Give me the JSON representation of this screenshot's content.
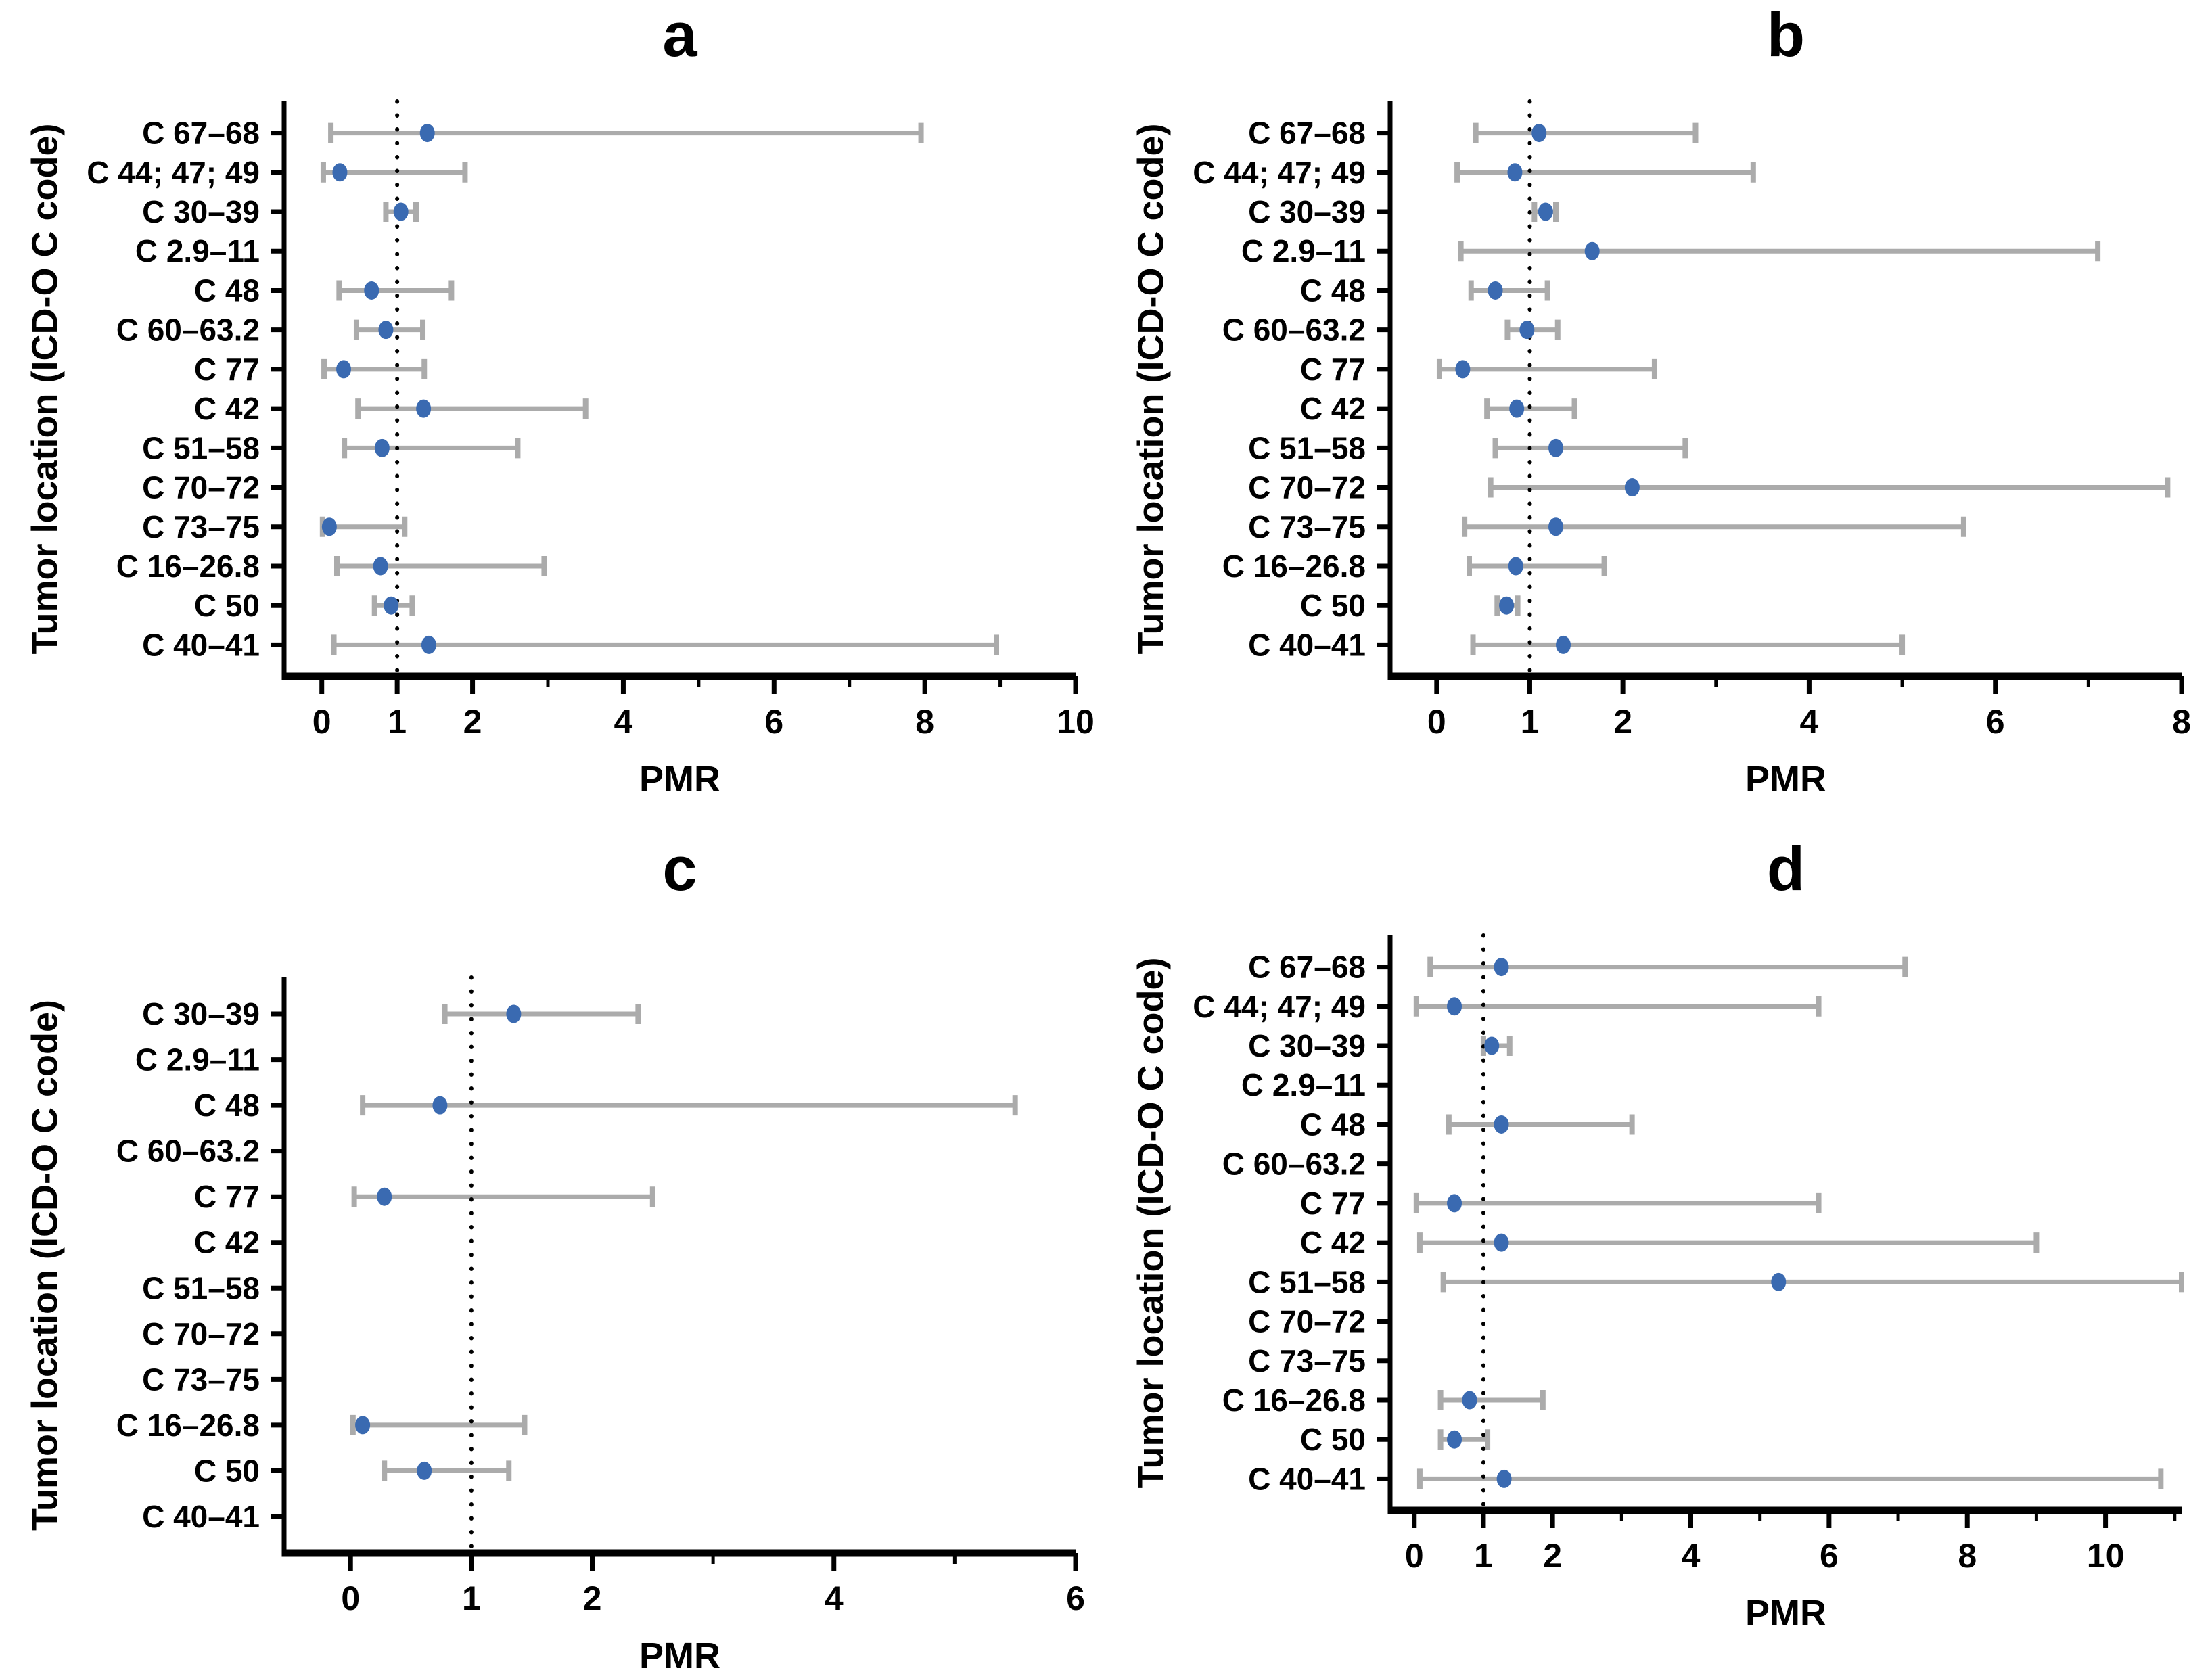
{
  "figure": {
    "background": "#ffffff"
  },
  "colors": {
    "point": "#3a6ab1",
    "error_bar": "#ababab",
    "axis": "#000000"
  },
  "chart_data": [
    {
      "id": "a",
      "type": "scatter",
      "subtype": "forest-plot-with-error-bars",
      "title": "a",
      "xlabel": "PMR",
      "ylabel": "Tumor location (ICD-O C code)",
      "xlim": [
        -0.5,
        10
      ],
      "xticks_major": [
        0,
        1,
        2,
        4,
        6,
        8,
        10
      ],
      "xticks_minor": [
        3,
        5,
        7,
        9
      ],
      "refline_x": 1,
      "points": [
        {
          "label": "C 67–68",
          "pmr": 1.4,
          "lo": 0.12,
          "hi": 7.95
        },
        {
          "label": "C 44; 47; 49",
          "pmr": 0.24,
          "lo": 0.02,
          "hi": 1.9
        },
        {
          "label": "C 30–39",
          "pmr": 1.05,
          "lo": 0.85,
          "hi": 1.25
        },
        {
          "label": "C 2.9–11",
          "pmr": null,
          "lo": null,
          "hi": null
        },
        {
          "label": "C 48",
          "pmr": 0.66,
          "lo": 0.23,
          "hi": 1.72
        },
        {
          "label": "C 60–63.2",
          "pmr": 0.85,
          "lo": 0.46,
          "hi": 1.34
        },
        {
          "label": "C 77",
          "pmr": 0.29,
          "lo": 0.03,
          "hi": 1.36
        },
        {
          "label": "C 42",
          "pmr": 1.35,
          "lo": 0.48,
          "hi": 3.5
        },
        {
          "label": "C 51–58",
          "pmr": 0.8,
          "lo": 0.3,
          "hi": 2.6
        },
        {
          "label": "C 70–72",
          "pmr": null,
          "lo": null,
          "hi": null
        },
        {
          "label": "C 73–75",
          "pmr": 0.1,
          "lo": 0.01,
          "hi": 1.1
        },
        {
          "label": "C 16–26.8",
          "pmr": 0.78,
          "lo": 0.2,
          "hi": 2.95
        },
        {
          "label": "C 50",
          "pmr": 0.92,
          "lo": 0.7,
          "hi": 1.2
        },
        {
          "label": "C 40–41",
          "pmr": 1.42,
          "lo": 0.16,
          "hi": 8.95
        }
      ]
    },
    {
      "id": "b",
      "type": "scatter",
      "subtype": "forest-plot-with-error-bars",
      "title": "b",
      "xlabel": "PMR",
      "ylabel": "Tumor location (ICD-O C code)",
      "xlim": [
        -0.5,
        8
      ],
      "xticks_major": [
        0,
        1,
        2,
        4,
        6,
        8
      ],
      "xticks_minor": [
        3,
        5,
        7
      ],
      "refline_x": 1,
      "points": [
        {
          "label": "C 67–68",
          "pmr": 1.1,
          "lo": 0.42,
          "hi": 2.78
        },
        {
          "label": "C 44; 47; 49",
          "pmr": 0.84,
          "lo": 0.22,
          "hi": 3.4
        },
        {
          "label": "C 30–39",
          "pmr": 1.17,
          "lo": 1.05,
          "hi": 1.28
        },
        {
          "label": "C 2.9–11",
          "pmr": 1.67,
          "lo": 0.26,
          "hi": 7.1
        },
        {
          "label": "C 48",
          "pmr": 0.63,
          "lo": 0.37,
          "hi": 1.19
        },
        {
          "label": "C 60–63.2",
          "pmr": 0.97,
          "lo": 0.76,
          "hi": 1.3
        },
        {
          "label": "C 77",
          "pmr": 0.28,
          "lo": 0.03,
          "hi": 2.34
        },
        {
          "label": "C 42",
          "pmr": 0.86,
          "lo": 0.54,
          "hi": 1.48
        },
        {
          "label": "C 51–58",
          "pmr": 1.28,
          "lo": 0.63,
          "hi": 2.67
        },
        {
          "label": "C 70–72",
          "pmr": 2.1,
          "lo": 0.58,
          "hi": 7.85
        },
        {
          "label": "C 73–75",
          "pmr": 1.28,
          "lo": 0.3,
          "hi": 5.66
        },
        {
          "label": "C 16–26.8",
          "pmr": 0.85,
          "lo": 0.35,
          "hi": 1.8
        },
        {
          "label": "C 50",
          "pmr": 0.75,
          "lo": 0.65,
          "hi": 0.87
        },
        {
          "label": "C 40–41",
          "pmr": 1.36,
          "lo": 0.39,
          "hi": 5.0
        }
      ]
    },
    {
      "id": "c",
      "type": "scatter",
      "subtype": "forest-plot-with-error-bars",
      "title": "c",
      "xlabel": "PMR",
      "ylabel": "Tumor location (ICD-O C code)",
      "xlim": [
        -0.55,
        6
      ],
      "xticks_major": [
        0,
        1,
        2,
        4,
        6
      ],
      "xticks_minor": [
        3,
        5
      ],
      "refline_x": 1,
      "points": [
        {
          "label": "C 30–39",
          "pmr": 1.35,
          "lo": 0.78,
          "hi": 2.38
        },
        {
          "label": "C 2.9–11",
          "pmr": null,
          "lo": null,
          "hi": null
        },
        {
          "label": "C 48",
          "pmr": 0.74,
          "lo": 0.1,
          "hi": 5.5
        },
        {
          "label": "C 60–63.2",
          "pmr": null,
          "lo": null,
          "hi": null
        },
        {
          "label": "C 77",
          "pmr": 0.28,
          "lo": 0.03,
          "hi": 2.5
        },
        {
          "label": "C 42",
          "pmr": null,
          "lo": null,
          "hi": null
        },
        {
          "label": "C 51–58",
          "pmr": null,
          "lo": null,
          "hi": null
        },
        {
          "label": "C 70–72",
          "pmr": null,
          "lo": null,
          "hi": null
        },
        {
          "label": "C 73–75",
          "pmr": null,
          "lo": null,
          "hi": null
        },
        {
          "label": "C 16–26.8",
          "pmr": 0.1,
          "lo": 0.02,
          "hi": 1.44
        },
        {
          "label": "C 50",
          "pmr": 0.61,
          "lo": 0.28,
          "hi": 1.31
        },
        {
          "label": "C 40–41",
          "pmr": null,
          "lo": null,
          "hi": null
        }
      ]
    },
    {
      "id": "d",
      "type": "scatter",
      "subtype": "forest-plot-with-error-bars",
      "title": "d",
      "xlabel": "PMR",
      "ylabel": "Tumor location (ICD-O C code)",
      "xlim": [
        -0.35,
        11.1
      ],
      "xticks_major": [
        0,
        1,
        2,
        4,
        6,
        8,
        10
      ],
      "xticks_minor": [
        3,
        5,
        7,
        9,
        11
      ],
      "refline_x": 1,
      "points": [
        {
          "label": "C 67–68",
          "pmr": 1.26,
          "lo": 0.23,
          "hi": 7.1
        },
        {
          "label": "C 44; 47; 49",
          "pmr": 0.58,
          "lo": 0.03,
          "hi": 5.85
        },
        {
          "label": "C 30–39",
          "pmr": 1.12,
          "lo": 1.0,
          "hi": 1.38
        },
        {
          "label": "C 2.9–11",
          "pmr": null,
          "lo": null,
          "hi": null
        },
        {
          "label": "C 48",
          "pmr": 1.26,
          "lo": 0.5,
          "hi": 3.15
        },
        {
          "label": "C 60–63.2",
          "pmr": null,
          "lo": null,
          "hi": null
        },
        {
          "label": "C 77",
          "pmr": 0.58,
          "lo": 0.03,
          "hi": 5.85
        },
        {
          "label": "C 42",
          "pmr": 1.26,
          "lo": 0.08,
          "hi": 9.0
        },
        {
          "label": "C 51–58",
          "pmr": 5.27,
          "lo": 0.42,
          "hi": 11.1
        },
        {
          "label": "C 70–72",
          "pmr": null,
          "lo": null,
          "hi": null
        },
        {
          "label": "C 73–75",
          "pmr": null,
          "lo": null,
          "hi": null
        },
        {
          "label": "C 16–26.8",
          "pmr": 0.8,
          "lo": 0.38,
          "hi": 1.86
        },
        {
          "label": "C 50",
          "pmr": 0.58,
          "lo": 0.38,
          "hi": 1.06
        },
        {
          "label": "C 40–41",
          "pmr": 1.3,
          "lo": 0.08,
          "hi": 10.8
        }
      ]
    }
  ]
}
